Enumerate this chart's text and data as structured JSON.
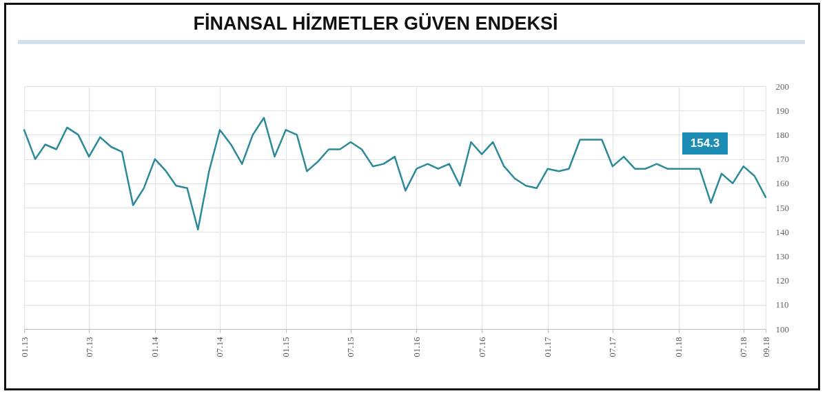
{
  "chart_data": {
    "type": "line",
    "title": "FİNANSAL HİZMETLER GÜVEN ENDEKSİ",
    "x": [
      "2013-01",
      "2013-02",
      "2013-03",
      "2013-04",
      "2013-05",
      "2013-06",
      "2013-07",
      "2013-08",
      "2013-09",
      "2013-10",
      "2013-11",
      "2013-12",
      "2014-01",
      "2014-02",
      "2014-03",
      "2014-04",
      "2014-05",
      "2014-06",
      "2014-07",
      "2014-08",
      "2014-09",
      "2014-10",
      "2014-11",
      "2014-12",
      "2015-01",
      "2015-02",
      "2015-03",
      "2015-04",
      "2015-05",
      "2015-06",
      "2015-07",
      "2015-08",
      "2015-09",
      "2015-10",
      "2015-11",
      "2015-12",
      "2016-01",
      "2016-02",
      "2016-03",
      "2016-04",
      "2016-05",
      "2016-06",
      "2016-07",
      "2016-08",
      "2016-09",
      "2016-10",
      "2016-11",
      "2016-12",
      "2017-01",
      "2017-02",
      "2017-03",
      "2017-04",
      "2017-05",
      "2017-06",
      "2017-07",
      "2017-08",
      "2017-09",
      "2017-10",
      "2017-11",
      "2017-12",
      "2018-01",
      "2018-02",
      "2018-03",
      "2018-04",
      "2018-05",
      "2018-06",
      "2018-07",
      "2018-08",
      "2018-09"
    ],
    "series": [
      {
        "color": "#2a8a99",
        "values": [
          182,
          170,
          176,
          174,
          183,
          180,
          171,
          179,
          175,
          173,
          151,
          158,
          170,
          165,
          159,
          158,
          141,
          165,
          182,
          176,
          168,
          180,
          187,
          171,
          182,
          180,
          165,
          169,
          174,
          174,
          177,
          174,
          167,
          168,
          171,
          157,
          166,
          168,
          166,
          168,
          159,
          177,
          172,
          177,
          167,
          162,
          159,
          158,
          166,
          165,
          166,
          178,
          178,
          178,
          167,
          171,
          166,
          166,
          168,
          166,
          166,
          166,
          166,
          152,
          164,
          160,
          167,
          163,
          154.3
        ]
      }
    ],
    "xlim": [
      "2013-01",
      "2018-09"
    ],
    "xticks": [
      {
        "value": "2013-01",
        "label": "01.13"
      },
      {
        "value": "2013-07",
        "label": "07.13"
      },
      {
        "value": "2014-01",
        "label": "01.14"
      },
      {
        "value": "2014-07",
        "label": "07.14"
      },
      {
        "value": "2015-01",
        "label": "01.15"
      },
      {
        "value": "2015-07",
        "label": "07.15"
      },
      {
        "value": "2016-01",
        "label": "01.16"
      },
      {
        "value": "2016-07",
        "label": "07.16"
      },
      {
        "value": "2017-01",
        "label": "01.17"
      },
      {
        "value": "2017-07",
        "label": "07.17"
      },
      {
        "value": "2018-01",
        "label": "01.18"
      },
      {
        "value": "2018-07",
        "label": "07.18"
      },
      {
        "value": "2018-09",
        "label": "09.18"
      }
    ],
    "ylim": [
      100,
      200
    ],
    "yticks": [
      100,
      110,
      120,
      130,
      140,
      150,
      160,
      170,
      180,
      190,
      200
    ],
    "annotations": [
      "154.3"
    ],
    "grid": true,
    "marker": "none",
    "line_style": "solid"
  }
}
